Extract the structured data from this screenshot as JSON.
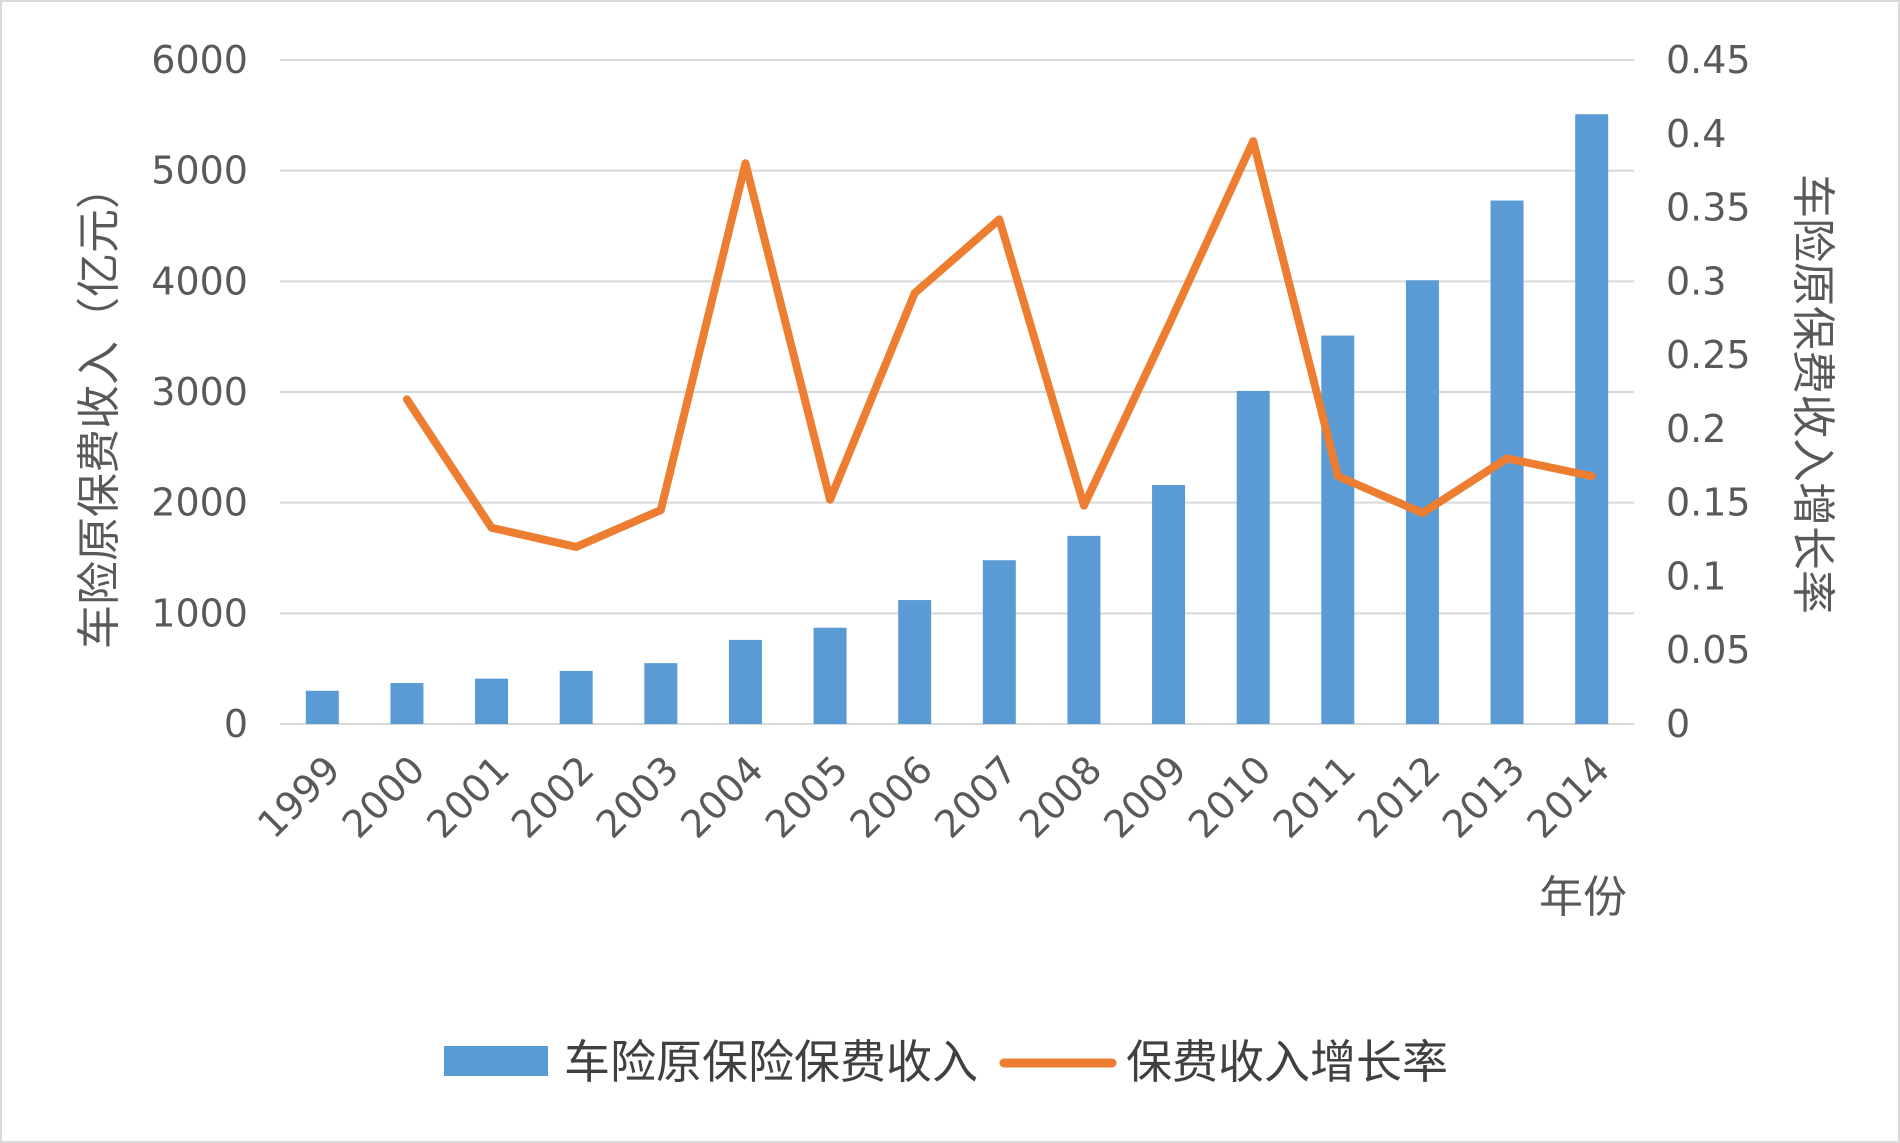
{
  "chart_data": {
    "type": "bar",
    "categories": [
      "1999",
      "2000",
      "2001",
      "2002",
      "2003",
      "2004",
      "2005",
      "2006",
      "2007",
      "2008",
      "2009",
      "2010",
      "2011",
      "2012",
      "2013",
      "2014"
    ],
    "series": [
      {
        "name": "车险原保险保费收入",
        "type": "bar",
        "axis": "left",
        "color": "#5b9bd5",
        "values": [
          300,
          370,
          410,
          480,
          550,
          760,
          870,
          1120,
          1480,
          1700,
          2160,
          3010,
          3510,
          4010,
          4730,
          5510
        ]
      },
      {
        "name": "保费收入增长率",
        "type": "line",
        "axis": "right",
        "color": "#ed7d31",
        "values": [
          null,
          0.22,
          0.133,
          0.12,
          0.145,
          0.38,
          0.152,
          0.292,
          0.342,
          0.148,
          0.27,
          0.395,
          0.168,
          0.143,
          0.18,
          0.168
        ]
      }
    ],
    "xlabel": "年份",
    "ylabel": "车险原保费收入（亿元）",
    "y2label": "车险原保费收入增长率",
    "ylim": [
      0,
      6000
    ],
    "yticks": [
      "0",
      "1000",
      "2000",
      "3000",
      "4000",
      "5000",
      "6000"
    ],
    "y2lim": [
      0,
      0.45
    ],
    "y2ticks": [
      "0",
      "0.05",
      "0.1",
      "0.15",
      "0.2",
      "0.25",
      "0.3",
      "0.35",
      "0.4",
      "0.45"
    ],
    "grid": true,
    "legend_position": "bottom"
  }
}
